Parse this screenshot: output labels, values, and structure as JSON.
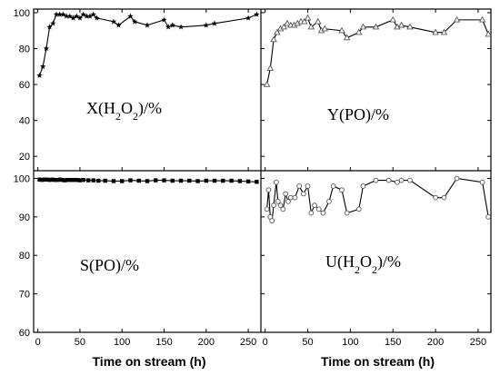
{
  "chart_data": {
    "type": "line",
    "x_axis_title": "Time on stream (h)",
    "x_ticks": [
      0,
      50,
      100,
      150,
      200,
      250
    ],
    "x_range": [
      -5,
      265
    ],
    "y_ticks_top": [
      20,
      40,
      60,
      80,
      100
    ],
    "y_ticks_bottom": [
      60,
      70,
      80,
      90,
      100
    ],
    "panels": [
      {
        "id": "X",
        "label": "X(H2O2)/%",
        "label_parts": [
          {
            "t": "X(H"
          },
          {
            "t": "2",
            "sub": true
          },
          {
            "t": "O"
          },
          {
            "t": "2",
            "sub": true
          },
          {
            "t": ")/%"
          }
        ],
        "marker": "star",
        "ylim": [
          12,
          102
        ],
        "x": [
          2,
          6,
          10,
          14,
          18,
          22,
          26,
          30,
          34,
          38,
          42,
          46,
          50,
          54,
          58,
          62,
          66,
          70,
          90,
          96,
          110,
          115,
          130,
          150,
          155,
          160,
          170,
          200,
          210,
          250,
          260
        ],
        "y": [
          65,
          70,
          80,
          92,
          94,
          99,
          99,
          99,
          98,
          98,
          97,
          98,
          97,
          99,
          98,
          98,
          99,
          97,
          95,
          93,
          98,
          95,
          93,
          96,
          92,
          93,
          92,
          93,
          94,
          97,
          99
        ]
      },
      {
        "id": "Y",
        "label": "Y(PO)/%",
        "label_parts": [
          {
            "t": "Y(PO)/%"
          }
        ],
        "marker": "triangle",
        "ylim": [
          12,
          102
        ],
        "x": [
          2,
          6,
          10,
          14,
          18,
          22,
          26,
          30,
          34,
          38,
          42,
          46,
          50,
          54,
          62,
          66,
          70,
          90,
          96,
          110,
          115,
          130,
          150,
          155,
          160,
          170,
          200,
          210,
          225,
          255,
          262
        ],
        "y": [
          60,
          69,
          85,
          89,
          91,
          92,
          94,
          93,
          93,
          94,
          95,
          95,
          97,
          92,
          95,
          90,
          91,
          90,
          86,
          89,
          92,
          92,
          96,
          92,
          93,
          92,
          89,
          89,
          96,
          96,
          88
        ]
      },
      {
        "id": "S",
        "label": "S(PO)/%",
        "label_parts": [
          {
            "t": "S(PO)/%"
          }
        ],
        "marker": "square",
        "ylim": [
          60,
          102
        ],
        "x": [
          2,
          5,
          8,
          11,
          14,
          17,
          20,
          23,
          26,
          29,
          32,
          35,
          38,
          41,
          44,
          47,
          50,
          54,
          60,
          66,
          72,
          80,
          90,
          100,
          110,
          120,
          130,
          140,
          150,
          160,
          170,
          180,
          190,
          200,
          210,
          220,
          230,
          240,
          250,
          260
        ],
        "y": [
          99.7,
          99.6,
          99.7,
          99.7,
          99.6,
          99.7,
          99.6,
          99.6,
          99.7,
          99.6,
          99.5,
          99.6,
          99.6,
          99.6,
          99.6,
          99.6,
          99.5,
          99.6,
          99.5,
          99.5,
          99.4,
          99.4,
          99.3,
          99.3,
          99.5,
          99.4,
          99.3,
          99.5,
          99.5,
          99.4,
          99.4,
          99.4,
          99.3,
          99.4,
          99.4,
          99.4,
          99.4,
          99.3,
          99.2,
          99.1
        ]
      },
      {
        "id": "U",
        "label": "U(H2O2)/%",
        "label_parts": [
          {
            "t": "U(H"
          },
          {
            "t": "2",
            "sub": true
          },
          {
            "t": "O"
          },
          {
            "t": "2",
            "sub": true
          },
          {
            "t": ")/%"
          }
        ],
        "marker": "circle",
        "ylim": [
          60,
          102
        ],
        "x": [
          2,
          4,
          6,
          8,
          10,
          13,
          15,
          18,
          21,
          24,
          27,
          30,
          35,
          40,
          45,
          50,
          54,
          58,
          63,
          68,
          75,
          80,
          90,
          96,
          110,
          115,
          130,
          145,
          155,
          160,
          170,
          200,
          210,
          225,
          255,
          262
        ],
        "y": [
          92,
          97,
          90,
          89,
          93,
          99,
          94,
          93,
          92,
          96,
          94,
          95,
          95,
          98,
          96,
          98,
          91,
          93,
          92,
          91,
          94,
          98,
          97,
          91,
          92,
          98,
          99.5,
          99.5,
          99,
          99.5,
          99.5,
          95,
          95,
          100,
          99,
          90
        ]
      }
    ]
  }
}
